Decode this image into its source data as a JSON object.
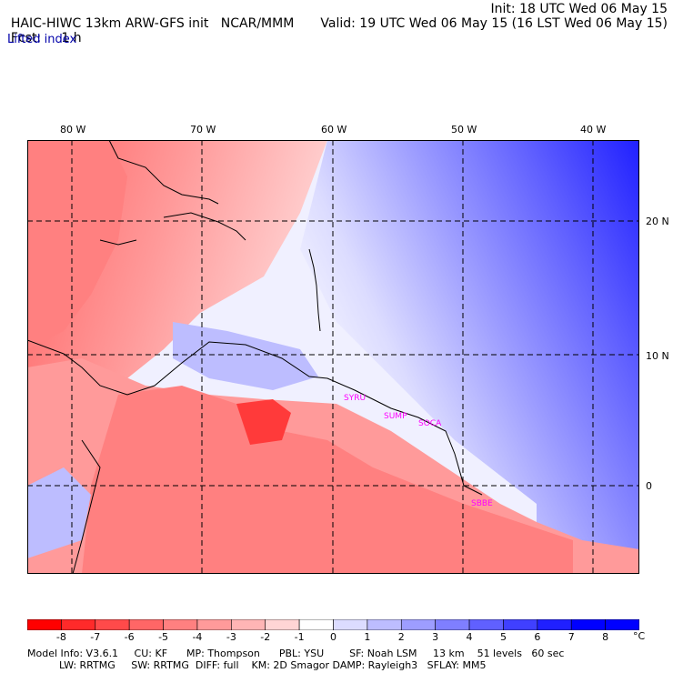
{
  "header": {
    "model": "HAIC-HIWC 13km ARW-GFS init",
    "org": "NCAR/MMM",
    "init": "Init: 18 UTC Wed 06 May 15",
    "fcst_label": "Fcst:",
    "fcst_value": "1 h",
    "valid": "Valid: 19 UTC Wed 06 May 15 (16 LST Wed 06 May 15)",
    "field": "Lifted index"
  },
  "map": {
    "lon_labels": [
      "80 W",
      "70 W",
      "60 W",
      "50 W",
      "40 W"
    ],
    "lat_labels": [
      "20 N",
      "10 N",
      "0"
    ],
    "stations": [
      "SYRU",
      "SUMP",
      "SOCA",
      "SBBE"
    ],
    "station_color": "#ff00ff"
  },
  "colorbar": {
    "labels": [
      "-8",
      "-7",
      "-6",
      "-5",
      "-4",
      "-3",
      "-2",
      "-1",
      "0",
      "1",
      "2",
      "3",
      "4",
      "5",
      "6",
      "7",
      "8"
    ],
    "unit": "°C",
    "colors": [
      "#ff0000",
      "#ff2a2a",
      "#ff4a4a",
      "#ff6666",
      "#ff8080",
      "#ff9a9a",
      "#ffb5b5",
      "#ffd5d5",
      "#ffffff",
      "#dcdcff",
      "#bdbdff",
      "#9d9dff",
      "#7f7fff",
      "#6060ff",
      "#4040ff",
      "#2020ff",
      "#0000ff"
    ]
  },
  "footer": {
    "line1": "Model Info: V3.6.1     CU: KF      MP: Thompson      PBL: YSU        SF: Noah LSM     13 km    51 levels   60 sec",
    "line2": "          LW: RRTMG     SW: RRTMG  DIFF: full    KM: 2D Smagor DAMP: Rayleigh3   SFLAY: MM5"
  }
}
